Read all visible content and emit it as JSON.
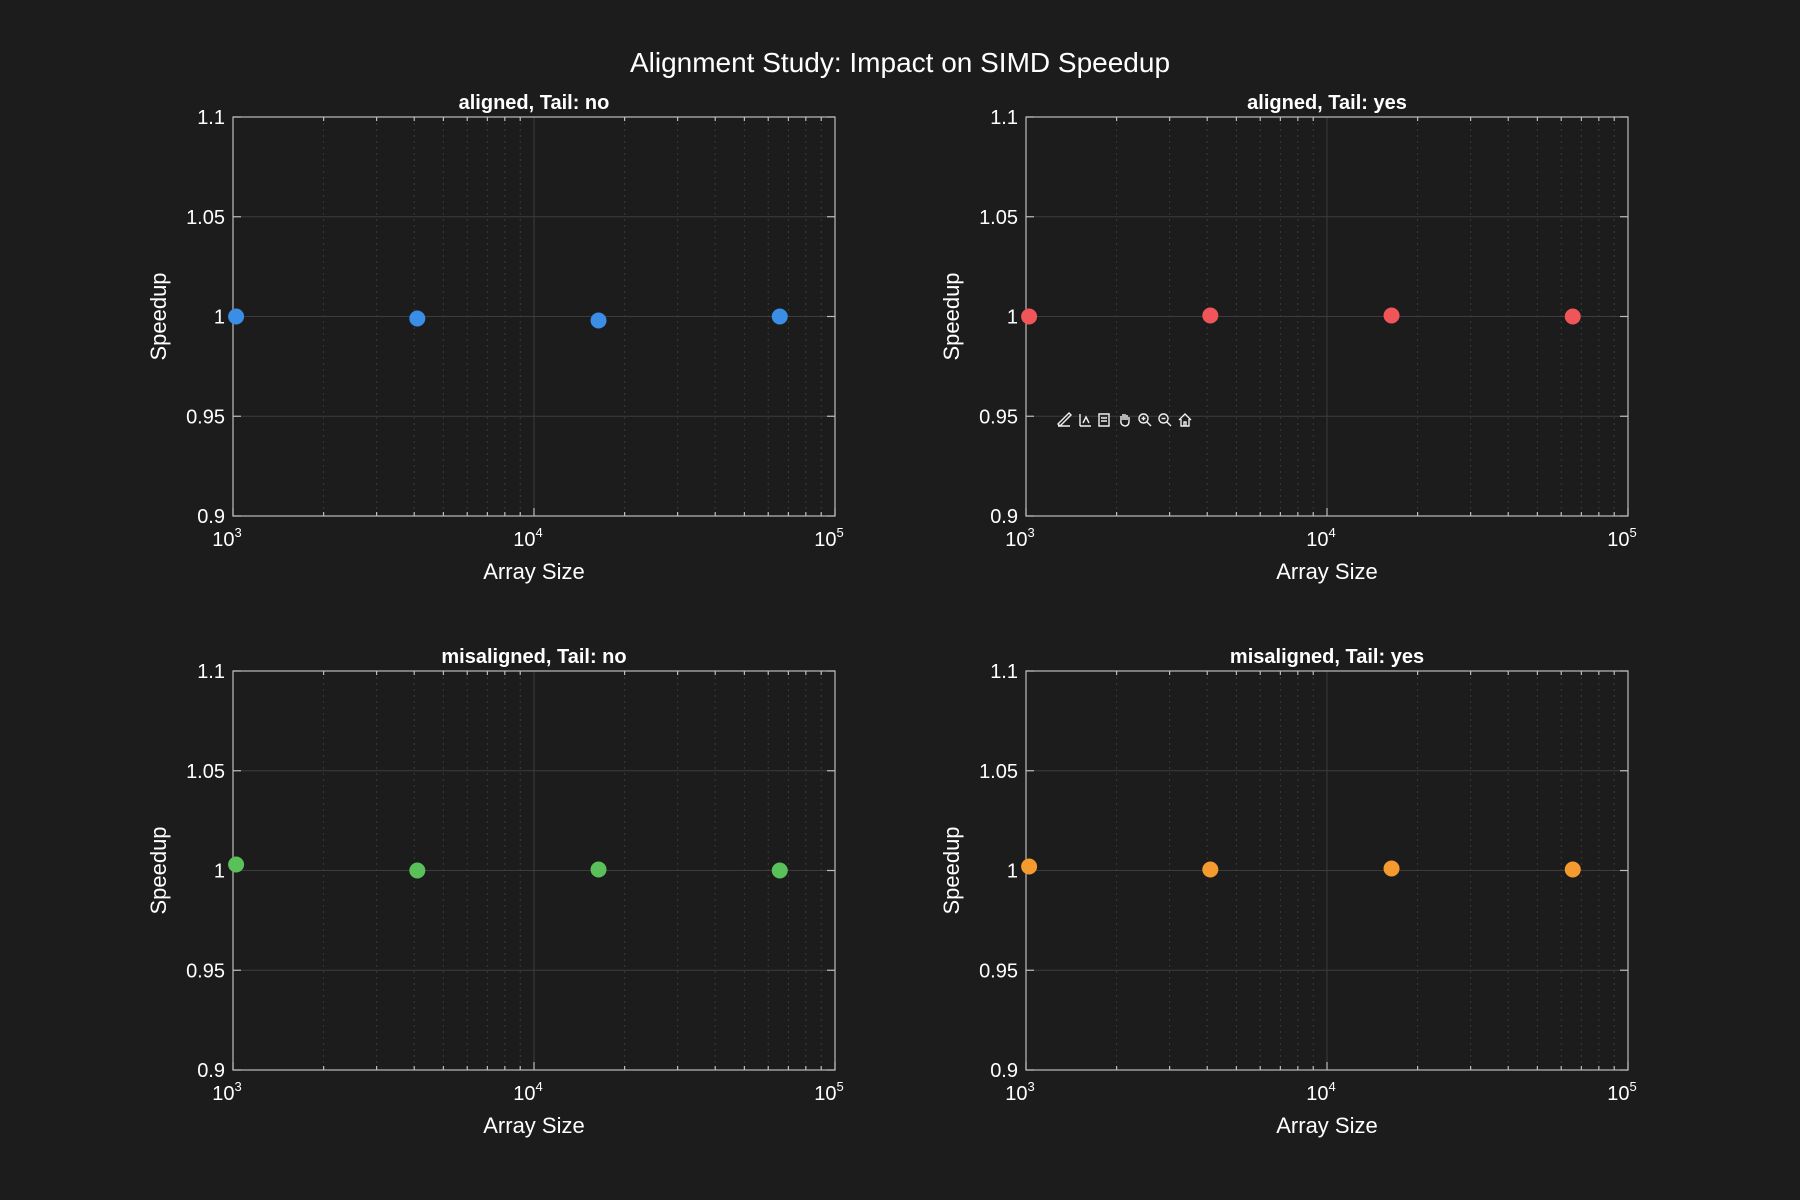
{
  "figure": {
    "title": "Alignment Study: Impact on SIMD Speedup",
    "background": "#1c1c1c"
  },
  "toolbar": {
    "icons": [
      "brush-icon",
      "data-tip-icon",
      "export-icon",
      "pan-icon",
      "zoom-in-icon",
      "zoom-out-icon",
      "home-icon"
    ]
  },
  "chart_data": [
    {
      "type": "scatter",
      "title": "aligned, Tail: no",
      "xlabel": "Array Size",
      "ylabel": "Speedup",
      "xscale": "log",
      "xlim": [
        1000,
        100000
      ],
      "ylim": [
        0.9,
        1.1
      ],
      "xticks": [
        {
          "base": "10",
          "exp": "3"
        },
        {
          "base": "10",
          "exp": "4"
        },
        {
          "base": "10",
          "exp": "5"
        }
      ],
      "yticks": [
        "0.9",
        "0.95",
        "1",
        "1.05",
        "1.1"
      ],
      "grid": true,
      "color": "#3a8ee6",
      "x": [
        1024,
        4096,
        16384,
        65536
      ],
      "y": [
        1.0,
        0.999,
        0.998,
        1.0
      ]
    },
    {
      "type": "scatter",
      "title": "aligned, Tail: yes",
      "xlabel": "Array Size",
      "ylabel": "Speedup",
      "xscale": "log",
      "xlim": [
        1000,
        100000
      ],
      "ylim": [
        0.9,
        1.1
      ],
      "xticks": [
        {
          "base": "10",
          "exp": "3"
        },
        {
          "base": "10",
          "exp": "4"
        },
        {
          "base": "10",
          "exp": "5"
        }
      ],
      "yticks": [
        "0.9",
        "0.95",
        "1",
        "1.05",
        "1.1"
      ],
      "grid": true,
      "color": "#f0555a",
      "x": [
        1024,
        4096,
        16384,
        65536
      ],
      "y": [
        1.0,
        1.0005,
        1.0005,
        1.0
      ]
    },
    {
      "type": "scatter",
      "title": "misaligned, Tail: no",
      "xlabel": "Array Size",
      "ylabel": "Speedup",
      "xscale": "log",
      "xlim": [
        1000,
        100000
      ],
      "ylim": [
        0.9,
        1.1
      ],
      "xticks": [
        {
          "base": "10",
          "exp": "3"
        },
        {
          "base": "10",
          "exp": "4"
        },
        {
          "base": "10",
          "exp": "5"
        }
      ],
      "yticks": [
        "0.9",
        "0.95",
        "1",
        "1.05",
        "1.1"
      ],
      "grid": true,
      "color": "#5ac05a",
      "x": [
        1024,
        4096,
        16384,
        65536
      ],
      "y": [
        1.003,
        1.0,
        1.0005,
        1.0
      ]
    },
    {
      "type": "scatter",
      "title": "misaligned, Tail: yes",
      "xlabel": "Array Size",
      "ylabel": "Speedup",
      "xscale": "log",
      "xlim": [
        1000,
        100000
      ],
      "ylim": [
        0.9,
        1.1
      ],
      "xticks": [
        {
          "base": "10",
          "exp": "3"
        },
        {
          "base": "10",
          "exp": "4"
        },
        {
          "base": "10",
          "exp": "5"
        }
      ],
      "yticks": [
        "0.9",
        "0.95",
        "1",
        "1.05",
        "1.1"
      ],
      "grid": true,
      "color": "#f59a2e",
      "x": [
        1024,
        4096,
        16384,
        65536
      ],
      "y": [
        1.002,
        1.0005,
        1.001,
        1.0005
      ]
    }
  ]
}
